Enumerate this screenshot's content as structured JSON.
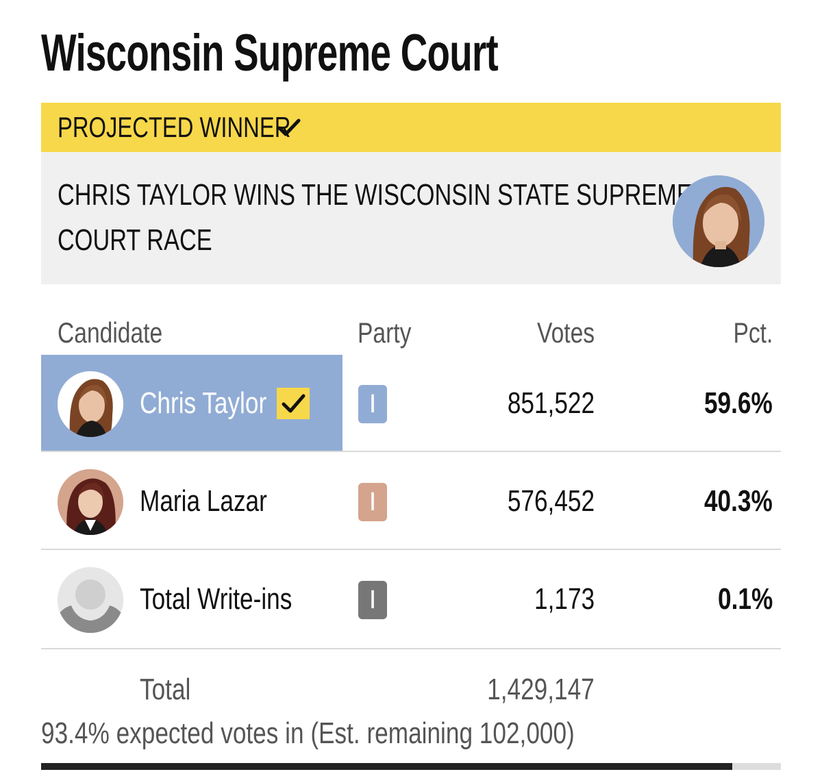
{
  "title": "Wisconsin Supreme Court",
  "banner": {
    "label": "PROJECTED WINNER",
    "headline_line1": "CHRIS TAYLOR WINS THE WISCONSIN STATE SUPREME",
    "headline_line2": "COURT RACE",
    "check_icon": "check-icon"
  },
  "table": {
    "headers": {
      "candidate": "Candidate",
      "party": "Party",
      "votes": "Votes",
      "pct": "Pct."
    },
    "rows": [
      {
        "name": "Chris Taylor",
        "party": "I",
        "party_color": "#91acd4",
        "votes": "851,522",
        "pct": "59.6%",
        "winner": true,
        "highlight_color": "#91acd4"
      },
      {
        "name": "Maria Lazar",
        "party": "I",
        "party_color": "#d4a48c",
        "votes": "576,452",
        "pct": "40.3%",
        "winner": false
      },
      {
        "name": "Total Write-ins",
        "party": "I",
        "party_color": "#777777",
        "votes": "1,173",
        "pct": "0.1%",
        "winner": false
      }
    ],
    "total_label": "Total",
    "total_votes": "1,429,147"
  },
  "expected": {
    "text": "93.4% expected votes in (Est. remaining 102,000)",
    "percent": 93.4
  },
  "colors": {
    "banner_yellow": "#f7d84a",
    "headline_bg": "#f0f0f0",
    "winner_blue": "#91acd4",
    "progress_fill": "#222222"
  }
}
